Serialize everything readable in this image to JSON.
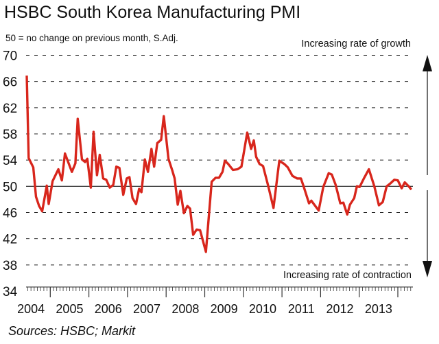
{
  "chart_data": {
    "type": "line",
    "title": "HSBC South Korea Manufacturing PMI",
    "subtitle": "50 = no change on previous month, S.Adj.",
    "annotations": {
      "top": "Increasing rate of growth",
      "bottom": "Increasing rate of contraction"
    },
    "source": "Sources: HSBC; Markit",
    "xlabel": "",
    "ylabel": "",
    "ylim": [
      34,
      70
    ],
    "yticks": [
      34,
      38,
      42,
      46,
      50,
      54,
      58,
      62,
      66,
      70
    ],
    "xticks": [
      "2004",
      "2005",
      "2006",
      "2007",
      "2008",
      "2009",
      "2010",
      "2011",
      "2012",
      "2013"
    ],
    "reference_line": 50,
    "grid": true,
    "line_color": "#d8261c",
    "series": [
      {
        "name": "PMI",
        "x": [
          2004.39,
          2004.44,
          2004.56,
          2004.63,
          2004.71,
          2004.79,
          2004.91,
          2004.96,
          2005.06,
          2005.21,
          2005.3,
          2005.38,
          2005.56,
          2005.65,
          2005.71,
          2005.82,
          2005.9,
          2005.96,
          2006.05,
          2006.12,
          2006.21,
          2006.28,
          2006.37,
          2006.45,
          2006.54,
          2006.63,
          2006.71,
          2006.79,
          2006.89,
          2006.98,
          2007.05,
          2007.13,
          2007.22,
          2007.3,
          2007.36,
          2007.45,
          2007.53,
          2007.62,
          2007.69,
          2007.77,
          2007.87,
          2007.94,
          2008.06,
          2008.16,
          2008.22,
          2008.3,
          2008.37,
          2008.46,
          2008.55,
          2008.62,
          2008.7,
          2008.79,
          2008.88,
          2009.03,
          2009.18,
          2009.28,
          2009.37,
          2009.46,
          2009.52,
          2009.61,
          2009.73,
          2009.85,
          2009.95,
          2010.1,
          2010.2,
          2010.27,
          2010.33,
          2010.42,
          2010.51,
          2010.65,
          2010.78,
          2010.93,
          2011.06,
          2011.15,
          2011.27,
          2011.39,
          2011.49,
          2011.56,
          2011.7,
          2011.76,
          2011.95,
          2012.07,
          2012.21,
          2012.29,
          2012.39,
          2012.51,
          2012.59,
          2012.69,
          2012.76,
          2012.87,
          2012.94,
          2013.01,
          2013.13,
          2013.25,
          2013.39,
          2013.51,
          2013.61,
          2013.71,
          2013.8,
          2013.91,
          2014.0,
          2014.1,
          2014.18,
          2014.28,
          2014.35
        ],
        "values": [
          66.9,
          54.3,
          52.9,
          48.4,
          47.0,
          46.2,
          50.1,
          47.3,
          50.8,
          52.6,
          50.9,
          55.0,
          52.2,
          53.5,
          60.3,
          54.1,
          53.7,
          54.2,
          49.8,
          58.3,
          51.7,
          54.8,
          51.2,
          51.0,
          49.8,
          50.2,
          53.0,
          52.8,
          48.7,
          51.2,
          51.4,
          48.2,
          47.3,
          49.6,
          49.1,
          54.1,
          52.2,
          55.7,
          53.0,
          56.6,
          57.1,
          60.7,
          54.2,
          52.4,
          51.2,
          47.2,
          49.3,
          45.9,
          47.0,
          46.6,
          42.6,
          43.4,
          43.3,
          40.0,
          50.7,
          51.3,
          51.3,
          52.2,
          53.9,
          53.4,
          52.5,
          52.6,
          53.0,
          58.2,
          55.7,
          57.0,
          54.5,
          53.4,
          53.1,
          49.9,
          46.7,
          53.9,
          53.4,
          52.9,
          51.6,
          51.2,
          51.2,
          50.0,
          47.4,
          47.8,
          46.3,
          49.9,
          52.0,
          51.8,
          50.2,
          47.4,
          47.5,
          45.7,
          47.2,
          48.2,
          50.0,
          49.9,
          51.3,
          52.6,
          50.0,
          47.1,
          47.6,
          50.0,
          50.4,
          51.0,
          50.9,
          49.7,
          50.6,
          50.0,
          49.5
        ]
      }
    ]
  }
}
